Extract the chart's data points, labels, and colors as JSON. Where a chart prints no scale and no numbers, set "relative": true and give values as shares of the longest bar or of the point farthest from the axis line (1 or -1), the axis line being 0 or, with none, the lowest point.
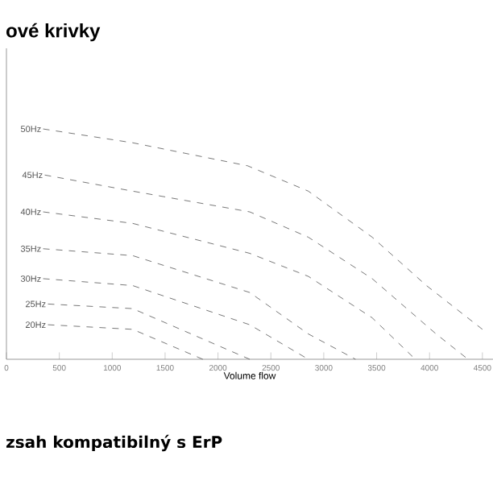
{
  "chart_data": {
    "type": "line",
    "title": "ové krivky",
    "xlabel": "Volume flow",
    "annotations": [
      "zsah kompatibilný s ErP"
    ],
    "relative": true,
    "xlim": [
      0,
      4600
    ],
    "xticks": [
      0,
      500,
      1000,
      1500,
      2000,
      2500,
      3000,
      3500,
      4000,
      4500
    ],
    "line_style": "dashed",
    "series": [
      {
        "name": "50Hz",
        "color": "#555555",
        "x": [
          347,
          1193,
          2280,
          2854,
          3458,
          3971,
          4500
        ],
        "values": [
          1,
          0.94,
          0.84,
          0.73,
          0.53,
          0.32,
          0.13
        ]
      },
      {
        "name": "45Hz",
        "color": "#555555",
        "x": [
          362,
          1193,
          2300,
          2854,
          3458,
          4062,
          4364
        ],
        "values": [
          0.8,
          0.73,
          0.64,
          0.53,
          0.35,
          0.11,
          0
        ]
      },
      {
        "name": "40Hz",
        "color": "#555555",
        "x": [
          347,
          1193,
          2300,
          2854,
          3458,
          3866
        ],
        "values": [
          0.64,
          0.59,
          0.46,
          0.36,
          0.18,
          0
        ]
      },
      {
        "name": "35Hz",
        "color": "#555555",
        "x": [
          347,
          1193,
          2300,
          2854,
          3300
        ],
        "values": [
          0.48,
          0.45,
          0.29,
          0.11,
          0
        ]
      },
      {
        "name": "30Hz",
        "color": "#555555",
        "x": [
          347,
          1193,
          2300,
          2854
        ],
        "values": [
          0.35,
          0.32,
          0.15,
          0
        ]
      },
      {
        "name": "25Hz",
        "color": "#555555",
        "x": [
          392,
          1193,
          2300
        ],
        "values": [
          0.24,
          0.22,
          0
        ]
      },
      {
        "name": "20Hz",
        "color": "#555555",
        "x": [
          392,
          1193,
          1857
        ],
        "values": [
          0.15,
          0.13,
          0
        ]
      }
    ]
  }
}
